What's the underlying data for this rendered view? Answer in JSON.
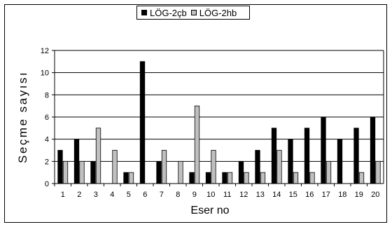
{
  "chart_data": {
    "type": "bar",
    "categories": [
      "1",
      "2",
      "3",
      "4",
      "5",
      "6",
      "7",
      "8",
      "9",
      "10",
      "11",
      "12",
      "13",
      "14",
      "15",
      "16",
      "17",
      "18",
      "19",
      "20"
    ],
    "series": [
      {
        "name": "LÖG-2çb",
        "color": "#000000",
        "values": [
          3,
          4,
          2,
          0,
          1,
          11,
          2,
          0,
          1,
          1,
          1,
          2,
          3,
          5,
          4,
          5,
          6,
          4,
          5,
          6
        ]
      },
      {
        "name": "LÖG-2hb",
        "color": "#c0c0c0",
        "values": [
          2,
          2,
          5,
          3,
          1,
          0,
          3,
          2,
          7,
          3,
          1,
          1,
          1,
          3,
          1,
          1,
          2,
          0,
          1,
          2
        ]
      }
    ],
    "xlabel": "Eser no",
    "ylabel": "Seçme sayısı",
    "ylim": [
      0,
      12
    ],
    "yticks": [
      0,
      2,
      4,
      6,
      8,
      10,
      12
    ],
    "grid": true,
    "legend_position": "top-center"
  }
}
